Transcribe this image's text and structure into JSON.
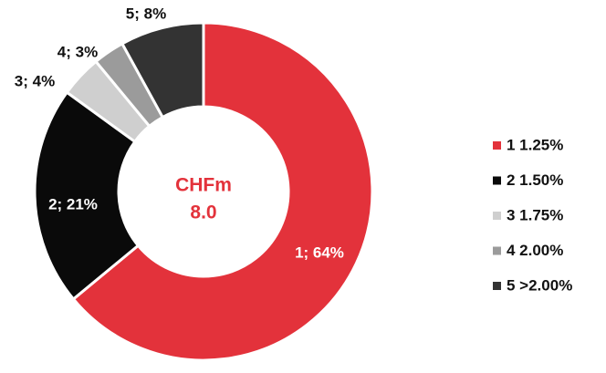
{
  "chart_data": {
    "type": "donut",
    "center_text": [
      "CHFm",
      "8.0"
    ],
    "categories": [
      "1 1.25%",
      "2 1.50%",
      "3 1.75%",
      "4 2.00%",
      "5 >2.00%"
    ],
    "values": [
      64,
      21,
      4,
      3,
      8
    ],
    "value_labels": [
      "1; 64%",
      "2; 21%",
      "3; 4%",
      "4; 3%",
      "5; 8%"
    ],
    "colors": [
      "#e3323b",
      "#0a0a0a",
      "#cfcfcf",
      "#9b9b9b",
      "#333333"
    ],
    "legend": "right"
  }
}
